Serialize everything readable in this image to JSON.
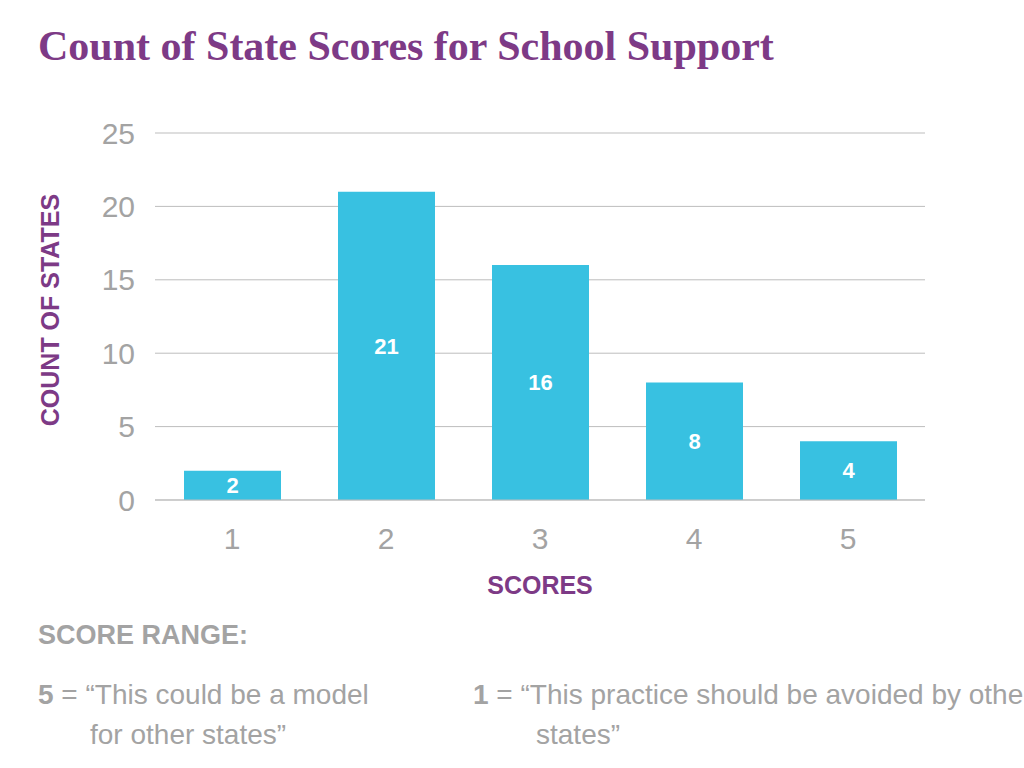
{
  "chart_data": {
    "type": "bar",
    "title": "Count of State Scores for School Support",
    "x_label": "SCORES",
    "y_label": "COUNT OF STATES",
    "categories": [
      "1",
      "2",
      "3",
      "4",
      "5"
    ],
    "values": [
      2,
      21,
      16,
      8,
      4
    ],
    "color": "#38c1e1",
    "ylim": [
      0,
      25
    ],
    "yticks": [
      0,
      5,
      10,
      15,
      20,
      25
    ],
    "grid": true,
    "data_labels": true,
    "annotations": [
      "SCORE RANGE:",
      "5 = “This could be a model for other states”",
      "1 = “This practice should be avoided by othe states”"
    ]
  }
}
